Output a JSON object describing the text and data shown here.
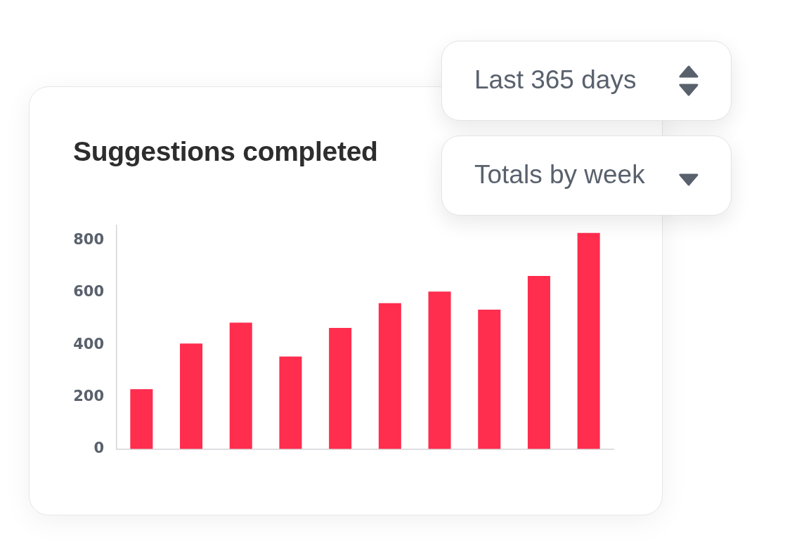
{
  "chart_data": {
    "type": "bar",
    "title": "Suggestions completed",
    "categories": [
      null,
      null,
      null,
      null,
      null,
      null,
      null,
      null,
      null,
      null
    ],
    "values": [
      230,
      405,
      485,
      355,
      465,
      560,
      605,
      535,
      665,
      830
    ],
    "color": "#ff2d4e",
    "ylim": [
      0,
      860
    ],
    "yticks": [
      0,
      200,
      400,
      600,
      800
    ],
    "annotations": [
      "Last 365 days",
      "Totals by week"
    ]
  }
}
